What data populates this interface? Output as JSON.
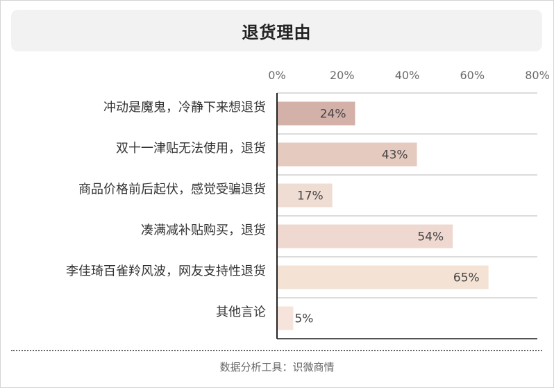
{
  "chart_data": {
    "type": "bar",
    "orientation": "horizontal",
    "title": "退货理由",
    "categories": [
      "冲动是魔鬼，冷静下来想退货",
      "双十一津贴无法使用，退货",
      "商品价格前后起伏，感觉受骗退货",
      "凑满减补贴购买，退货",
      "李佳琦百雀羚风波，网友支持性退货",
      "其他言论"
    ],
    "values": [
      24,
      43,
      17,
      54,
      65,
      5
    ],
    "data_labels": [
      "24%",
      "43%",
      "17%",
      "54%",
      "65%",
      "5%"
    ],
    "bar_colors": [
      "#d3b0a8",
      "#e5cabf",
      "#efdcd2",
      "#efd8cf",
      "#f4e3d5",
      "#f6e4dc"
    ],
    "xlim": [
      0,
      80
    ],
    "x_ticks": [
      0,
      20,
      40,
      60,
      80
    ],
    "x_tick_labels": [
      "0%",
      "20%",
      "40%",
      "60%",
      "80%"
    ],
    "x_axis_position": "top",
    "grid": true
  },
  "footer": {
    "source": "数据分析工具：识微商情"
  }
}
